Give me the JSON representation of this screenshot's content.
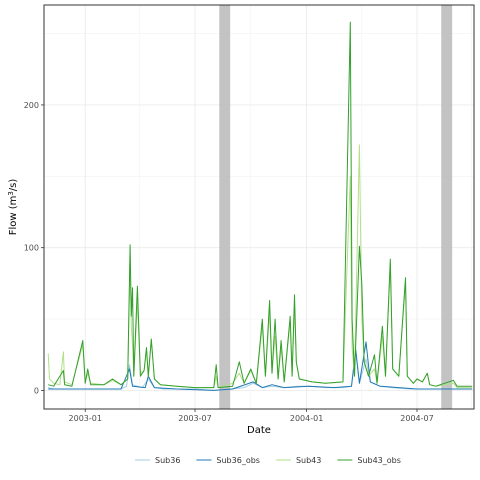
{
  "chart_data": {
    "type": "line",
    "xlabel": "Date",
    "ylabel": "Flow (m",
    "ylabel_sup": "3",
    "ylabel_suffix": "/s)",
    "xlim": [
      "2002-10-25",
      "2004-10-03"
    ],
    "ylim": [
      -13,
      270
    ],
    "x_ticks": [
      {
        "date": "2003-01-01",
        "label": "2003-01"
      },
      {
        "date": "2003-07-01",
        "label": "2003-07"
      },
      {
        "date": "2004-01-01",
        "label": "2004-01"
      },
      {
        "date": "2004-07-01",
        "label": "2004-07"
      }
    ],
    "y_ticks": [
      0,
      100,
      200
    ],
    "grid": true,
    "legend_position": "bottom",
    "shaded_periods": [
      {
        "start": "2003-08-10",
        "end": "2003-08-28"
      },
      {
        "start": "2004-08-10",
        "end": "2004-08-28"
      }
    ],
    "series": [
      {
        "name": "Sub36",
        "color": "#a6cee3",
        "points": [
          [
            "2002-11-01",
            2
          ],
          [
            "2002-11-10",
            1
          ],
          [
            "2002-12-01",
            1
          ],
          [
            "2003-01-01",
            1
          ],
          [
            "2003-03-01",
            1
          ],
          [
            "2003-03-10",
            3
          ],
          [
            "2003-03-15",
            18
          ],
          [
            "2003-03-20",
            4
          ],
          [
            "2003-04-05",
            2
          ],
          [
            "2003-04-15",
            8
          ],
          [
            "2003-04-25",
            2
          ],
          [
            "2003-05-10",
            1
          ],
          [
            "2003-06-01",
            1
          ],
          [
            "2003-07-01",
            1
          ],
          [
            "2003-08-01",
            0
          ],
          [
            "2003-08-30",
            1
          ],
          [
            "2003-09-20",
            2
          ],
          [
            "2003-10-05",
            5
          ],
          [
            "2003-10-20",
            2
          ],
          [
            "2003-11-05",
            3
          ],
          [
            "2003-11-25",
            2
          ],
          [
            "2003-12-15",
            3
          ],
          [
            "2004-01-05",
            3
          ],
          [
            "2004-02-01",
            2
          ],
          [
            "2004-03-01",
            2
          ],
          [
            "2004-03-15",
            3
          ],
          [
            "2004-03-22",
            30
          ],
          [
            "2004-03-28",
            5
          ],
          [
            "2004-04-08",
            22
          ],
          [
            "2004-04-15",
            6
          ],
          [
            "2004-05-01",
            3
          ],
          [
            "2004-05-20",
            2
          ],
          [
            "2004-06-20",
            1
          ],
          [
            "2004-07-20",
            1
          ],
          [
            "2004-09-01",
            1
          ],
          [
            "2004-09-30",
            1
          ]
        ]
      },
      {
        "name": "Sub36_obs",
        "color": "#1f78b4",
        "points": [
          [
            "2002-11-01",
            1
          ],
          [
            "2002-12-01",
            1
          ],
          [
            "2003-01-01",
            1
          ],
          [
            "2003-03-01",
            1
          ],
          [
            "2003-03-15",
            15
          ],
          [
            "2003-03-20",
            3
          ],
          [
            "2003-04-10",
            2
          ],
          [
            "2003-04-15",
            10
          ],
          [
            "2003-04-25",
            2
          ],
          [
            "2003-06-01",
            1
          ],
          [
            "2003-08-01",
            0
          ],
          [
            "2003-09-01",
            1
          ],
          [
            "2003-10-05",
            6
          ],
          [
            "2003-10-20",
            2
          ],
          [
            "2003-11-05",
            4
          ],
          [
            "2003-11-25",
            2
          ],
          [
            "2004-01-05",
            3
          ],
          [
            "2004-02-15",
            2
          ],
          [
            "2004-03-15",
            3
          ],
          [
            "2004-03-22",
            28
          ],
          [
            "2004-03-28",
            5
          ],
          [
            "2004-04-08",
            34
          ],
          [
            "2004-04-15",
            6
          ],
          [
            "2004-05-01",
            3
          ],
          [
            "2004-06-01",
            2
          ],
          [
            "2004-07-01",
            1
          ],
          [
            "2004-09-01",
            1
          ],
          [
            "2004-09-30",
            1
          ]
        ]
      },
      {
        "name": "Sub43",
        "color": "#b2df8a",
        "points": [
          [
            "2002-11-01",
            26
          ],
          [
            "2002-11-03",
            8
          ],
          [
            "2002-11-10",
            5
          ],
          [
            "2002-11-20",
            4
          ],
          [
            "2002-11-26",
            27
          ],
          [
            "2002-11-28",
            6
          ],
          [
            "2002-12-10",
            4
          ],
          [
            "2002-12-28",
            32
          ],
          [
            "2003-01-01",
            6
          ],
          [
            "2003-01-05",
            12
          ],
          [
            "2003-01-10",
            5
          ],
          [
            "2003-02-01",
            4
          ],
          [
            "2003-02-15",
            7
          ],
          [
            "2003-03-01",
            4
          ],
          [
            "2003-03-12",
            8
          ],
          [
            "2003-03-16",
            95
          ],
          [
            "2003-03-18",
            45
          ],
          [
            "2003-03-20",
            32
          ],
          [
            "2003-03-22",
            10
          ],
          [
            "2003-03-28",
            62
          ],
          [
            "2003-04-02",
            12
          ],
          [
            "2003-04-08",
            14
          ],
          [
            "2003-04-12",
            28
          ],
          [
            "2003-04-15",
            10
          ],
          [
            "2003-04-20",
            35
          ],
          [
            "2003-04-25",
            8
          ],
          [
            "2003-05-05",
            4
          ],
          [
            "2003-06-01",
            3
          ],
          [
            "2003-07-01",
            2
          ],
          [
            "2003-08-01",
            2
          ],
          [
            "2003-08-05",
            10
          ],
          [
            "2003-08-08",
            2
          ],
          [
            "2003-09-01",
            5
          ],
          [
            "2003-09-12",
            12
          ],
          [
            "2003-09-20",
            5
          ],
          [
            "2003-10-01",
            14
          ],
          [
            "2003-10-10",
            5
          ],
          [
            "2003-10-20",
            45
          ],
          [
            "2003-10-25",
            10
          ],
          [
            "2003-11-01",
            55
          ],
          [
            "2003-11-05",
            12
          ],
          [
            "2003-11-10",
            38
          ],
          [
            "2003-11-15",
            8
          ],
          [
            "2003-11-20",
            30
          ],
          [
            "2003-11-25",
            6
          ],
          [
            "2003-12-05",
            48
          ],
          [
            "2003-12-08",
            10
          ],
          [
            "2003-12-12",
            60
          ],
          [
            "2003-12-15",
            20
          ],
          [
            "2003-12-20",
            8
          ],
          [
            "2004-01-10",
            6
          ],
          [
            "2004-02-01",
            5
          ],
          [
            "2004-03-01",
            6
          ],
          [
            "2004-03-13",
            150
          ],
          [
            "2004-03-16",
            30
          ],
          [
            "2004-03-20",
            10
          ],
          [
            "2004-03-28",
            172
          ],
          [
            "2004-04-01",
            50
          ],
          [
            "2004-04-05",
            20
          ],
          [
            "2004-04-12",
            10
          ],
          [
            "2004-04-22",
            15
          ],
          [
            "2004-04-26",
            5
          ],
          [
            "2004-05-05",
            38
          ],
          [
            "2004-05-10",
            10
          ],
          [
            "2004-05-18",
            88
          ],
          [
            "2004-05-22",
            15
          ],
          [
            "2004-06-01",
            10
          ],
          [
            "2004-06-12",
            76
          ],
          [
            "2004-06-15",
            10
          ],
          [
            "2004-06-25",
            5
          ],
          [
            "2004-07-01",
            8
          ],
          [
            "2004-07-10",
            6
          ],
          [
            "2004-07-18",
            12
          ],
          [
            "2004-07-22",
            4
          ],
          [
            "2004-08-01",
            3
          ],
          [
            "2004-08-30",
            5
          ],
          [
            "2004-09-05",
            2
          ],
          [
            "2004-09-30",
            2
          ]
        ]
      },
      {
        "name": "Sub43_obs",
        "color": "#33a02c",
        "points": [
          [
            "2002-11-01",
            4
          ],
          [
            "2002-11-10",
            3
          ],
          [
            "2002-11-26",
            14
          ],
          [
            "2002-11-28",
            4
          ],
          [
            "2002-12-10",
            3
          ],
          [
            "2002-12-28",
            35
          ],
          [
            "2003-01-01",
            5
          ],
          [
            "2003-01-05",
            15
          ],
          [
            "2003-01-10",
            4
          ],
          [
            "2003-02-01",
            4
          ],
          [
            "2003-02-15",
            8
          ],
          [
            "2003-03-01",
            4
          ],
          [
            "2003-03-12",
            8
          ],
          [
            "2003-03-16",
            102
          ],
          [
            "2003-03-18",
            52
          ],
          [
            "2003-03-20",
            72
          ],
          [
            "2003-03-22",
            10
          ],
          [
            "2003-03-28",
            73
          ],
          [
            "2003-04-02",
            10
          ],
          [
            "2003-04-08",
            14
          ],
          [
            "2003-04-12",
            30
          ],
          [
            "2003-04-15",
            10
          ],
          [
            "2003-04-20",
            36
          ],
          [
            "2003-04-25",
            8
          ],
          [
            "2003-05-05",
            4
          ],
          [
            "2003-06-01",
            3
          ],
          [
            "2003-07-01",
            2
          ],
          [
            "2003-08-01",
            2
          ],
          [
            "2003-08-05",
            18
          ],
          [
            "2003-08-08",
            2
          ],
          [
            "2003-09-01",
            3
          ],
          [
            "2003-09-12",
            20
          ],
          [
            "2003-09-20",
            5
          ],
          [
            "2003-10-01",
            15
          ],
          [
            "2003-10-10",
            5
          ],
          [
            "2003-10-20",
            50
          ],
          [
            "2003-10-25",
            10
          ],
          [
            "2003-11-01",
            63
          ],
          [
            "2003-11-05",
            12
          ],
          [
            "2003-11-10",
            50
          ],
          [
            "2003-11-15",
            8
          ],
          [
            "2003-11-20",
            35
          ],
          [
            "2003-11-25",
            6
          ],
          [
            "2003-12-05",
            52
          ],
          [
            "2003-12-08",
            10
          ],
          [
            "2003-12-12",
            67
          ],
          [
            "2003-12-15",
            20
          ],
          [
            "2003-12-20",
            8
          ],
          [
            "2004-01-10",
            6
          ],
          [
            "2004-02-01",
            5
          ],
          [
            "2004-03-01",
            6
          ],
          [
            "2004-03-13",
            258
          ],
          [
            "2004-03-16",
            50
          ],
          [
            "2004-03-20",
            10
          ],
          [
            "2004-03-28",
            101
          ],
          [
            "2004-04-01",
            75
          ],
          [
            "2004-04-05",
            20
          ],
          [
            "2004-04-12",
            10
          ],
          [
            "2004-04-22",
            25
          ],
          [
            "2004-04-26",
            5
          ],
          [
            "2004-05-05",
            45
          ],
          [
            "2004-05-10",
            10
          ],
          [
            "2004-05-18",
            92
          ],
          [
            "2004-05-22",
            15
          ],
          [
            "2004-06-01",
            10
          ],
          [
            "2004-06-12",
            79
          ],
          [
            "2004-06-15",
            10
          ],
          [
            "2004-06-25",
            5
          ],
          [
            "2004-07-01",
            8
          ],
          [
            "2004-07-10",
            6
          ],
          [
            "2004-07-18",
            12
          ],
          [
            "2004-07-22",
            4
          ],
          [
            "2004-08-01",
            3
          ],
          [
            "2004-08-30",
            7
          ],
          [
            "2004-09-05",
            3
          ],
          [
            "2004-09-30",
            3
          ]
        ]
      }
    ]
  }
}
